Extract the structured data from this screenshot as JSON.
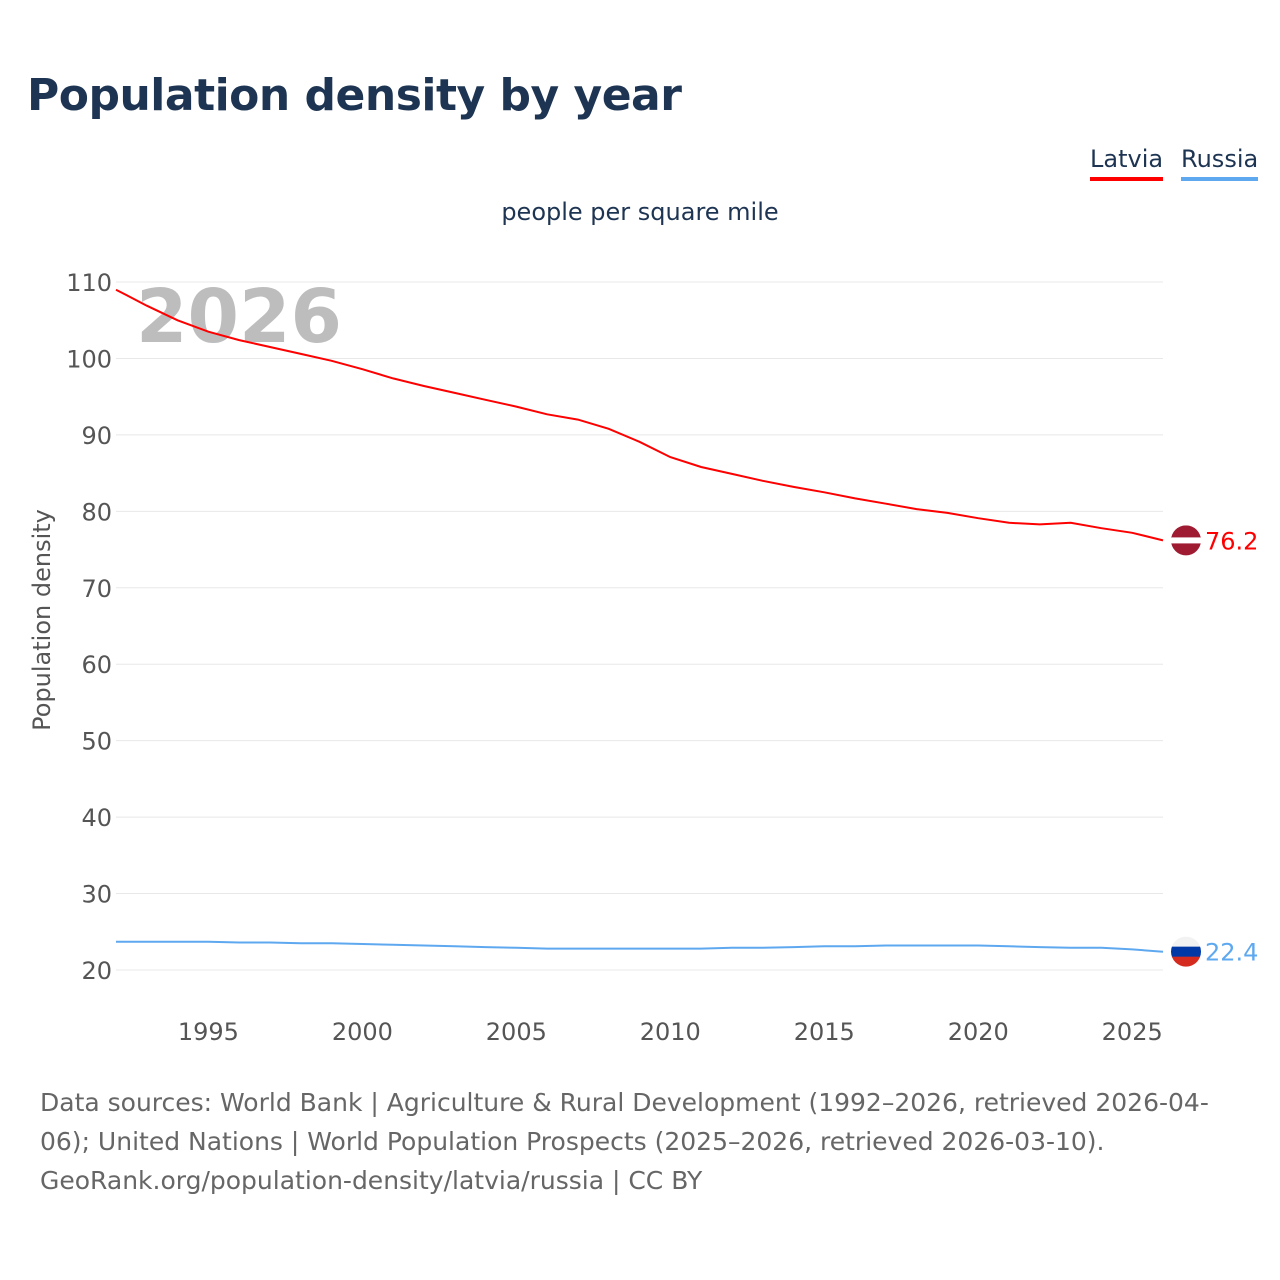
{
  "title": "Population density by year",
  "subtitle": "people per square mile",
  "legend": [
    {
      "label": "Latvia",
      "color": "#ff0000"
    },
    {
      "label": "Russia",
      "color": "#5ea8f0"
    }
  ],
  "footer": {
    "line1": "Data sources: World Bank | Agriculture & Rural Development (1992–2026, retrieved 2026-04-06); United Nations | World Population Prospects (2025–2026, retrieved 2026-03-10).",
    "line2": "GeoRank.org/population-density/latvia/russia | CC BY"
  },
  "chart_data": {
    "type": "line",
    "title": "Population density by year",
    "subtitle": "people per square mile",
    "ylabel": "Population density",
    "xlabel": "",
    "year_watermark": "2026",
    "xlim": [
      1992,
      2026
    ],
    "ylim": [
      15,
      112
    ],
    "xticks": [
      1995,
      2000,
      2005,
      2010,
      2015,
      2020,
      2025
    ],
    "yticks": [
      20,
      30,
      40,
      50,
      60,
      70,
      80,
      90,
      100,
      110
    ],
    "grid": true,
    "legend_position": "top-right",
    "x": [
      1992,
      1993,
      1994,
      1995,
      1996,
      1997,
      1998,
      1999,
      2000,
      2001,
      2002,
      2003,
      2004,
      2005,
      2006,
      2007,
      2008,
      2009,
      2010,
      2011,
      2012,
      2013,
      2014,
      2015,
      2016,
      2017,
      2018,
      2019,
      2020,
      2021,
      2022,
      2023,
      2024,
      2025,
      2026
    ],
    "series": [
      {
        "name": "Latvia",
        "color": "#ff0000",
        "end_label": "76.2",
        "values": [
          109,
          106.9,
          105,
          103.5,
          102.4,
          101.5,
          100.6,
          99.7,
          98.6,
          97.4,
          96.4,
          95.5,
          94.6,
          93.7,
          92.7,
          92,
          90.8,
          89.1,
          87.1,
          85.8,
          84.9,
          84,
          83.2,
          82.5,
          81.7,
          81,
          80.3,
          79.8,
          79.1,
          78.5,
          78.3,
          78.5,
          77.8,
          77.2,
          76.2
        ]
      },
      {
        "name": "Russia",
        "color": "#5ea8f0",
        "end_label": "22.4",
        "values": [
          23.7,
          23.7,
          23.7,
          23.7,
          23.6,
          23.6,
          23.5,
          23.5,
          23.4,
          23.3,
          23.2,
          23.1,
          23,
          22.9,
          22.8,
          22.8,
          22.8,
          22.8,
          22.8,
          22.8,
          22.9,
          22.9,
          23,
          23.1,
          23.1,
          23.2,
          23.2,
          23.2,
          23.2,
          23.1,
          23,
          22.9,
          22.9,
          22.7,
          22.4
        ]
      }
    ]
  }
}
